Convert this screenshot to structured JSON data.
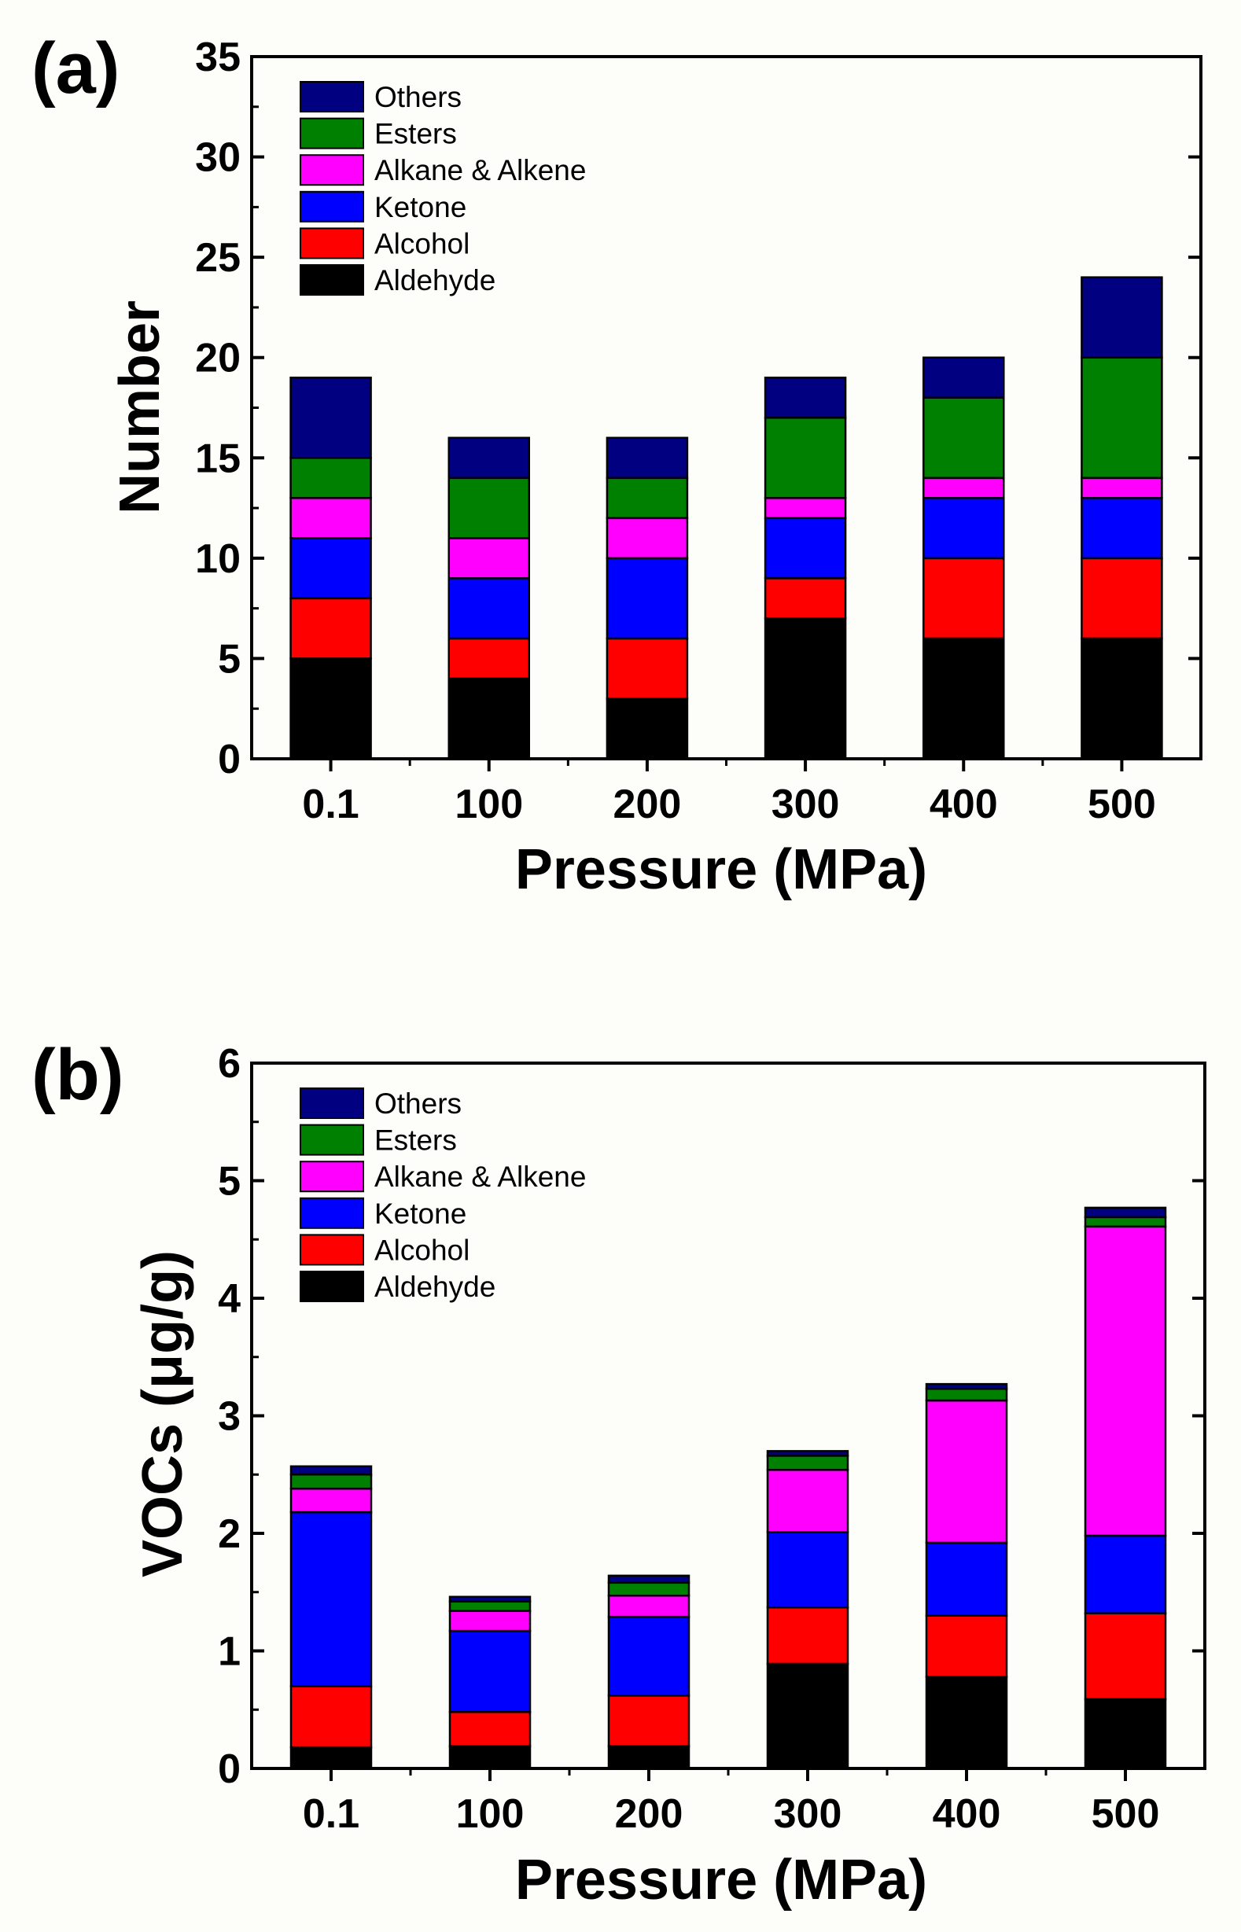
{
  "chart_data": [
    {
      "panel": "(a)",
      "type": "bar",
      "stacked": true,
      "categories": [
        "0.1",
        "100",
        "200",
        "300",
        "400",
        "500"
      ],
      "xlabel": "Pressure (MPa)",
      "ylabel": "Number",
      "ylim": [
        0,
        35
      ],
      "yticks": [
        "0",
        "5",
        "10",
        "15",
        "20",
        "25",
        "30",
        "35"
      ],
      "legend": [
        "Others",
        "Esters",
        "Alkane & Alkene",
        "Ketone",
        "Alcohol",
        "Aldehyde"
      ],
      "series": [
        {
          "name": "Aldehyde",
          "color": "#000000",
          "values": [
            5,
            4,
            3,
            7,
            6,
            6
          ]
        },
        {
          "name": "Alcohol",
          "color": "#ff0000",
          "values": [
            3,
            2,
            3,
            2,
            4,
            4
          ]
        },
        {
          "name": "Ketone",
          "color": "#0000ff",
          "values": [
            3,
            3,
            4,
            3,
            3,
            3
          ]
        },
        {
          "name": "Alkane & Alkene",
          "color": "#ff00ff",
          "values": [
            2,
            2,
            2,
            1,
            1,
            1
          ]
        },
        {
          "name": "Esters",
          "color": "#008000",
          "values": [
            2,
            3,
            2,
            4,
            4,
            6
          ]
        },
        {
          "name": "Others",
          "color": "#000080",
          "values": [
            4,
            2,
            2,
            2,
            2,
            4
          ]
        }
      ]
    },
    {
      "panel": "(b)",
      "type": "bar",
      "stacked": true,
      "categories": [
        "0.1",
        "100",
        "200",
        "300",
        "400",
        "500"
      ],
      "xlabel": "Pressure (MPa)",
      "ylabel": "VOCs (μg/g)",
      "ylim": [
        0,
        6
      ],
      "yticks": [
        "0",
        "1",
        "2",
        "3",
        "4",
        "5",
        "6"
      ],
      "legend": [
        "Others",
        "Esters",
        "Alkane & Alkene",
        "Ketone",
        "Alcohol",
        "Aldehyde"
      ],
      "series": [
        {
          "name": "Aldehyde",
          "color": "#000000",
          "values": [
            0.18,
            0.19,
            0.19,
            0.89,
            0.78,
            0.59
          ]
        },
        {
          "name": "Alcohol",
          "color": "#ff0000",
          "values": [
            0.52,
            0.29,
            0.43,
            0.48,
            0.52,
            0.73
          ]
        },
        {
          "name": "Ketone",
          "color": "#0000ff",
          "values": [
            1.48,
            0.69,
            0.67,
            0.64,
            0.62,
            0.66
          ]
        },
        {
          "name": "Alkane & Alkene",
          "color": "#ff00ff",
          "values": [
            0.2,
            0.17,
            0.18,
            0.53,
            1.21,
            2.63
          ]
        },
        {
          "name": "Esters",
          "color": "#008000",
          "values": [
            0.12,
            0.08,
            0.11,
            0.12,
            0.1,
            0.08
          ]
        },
        {
          "name": "Others",
          "color": "#000080",
          "values": [
            0.07,
            0.04,
            0.06,
            0.04,
            0.04,
            0.08
          ]
        }
      ]
    }
  ]
}
